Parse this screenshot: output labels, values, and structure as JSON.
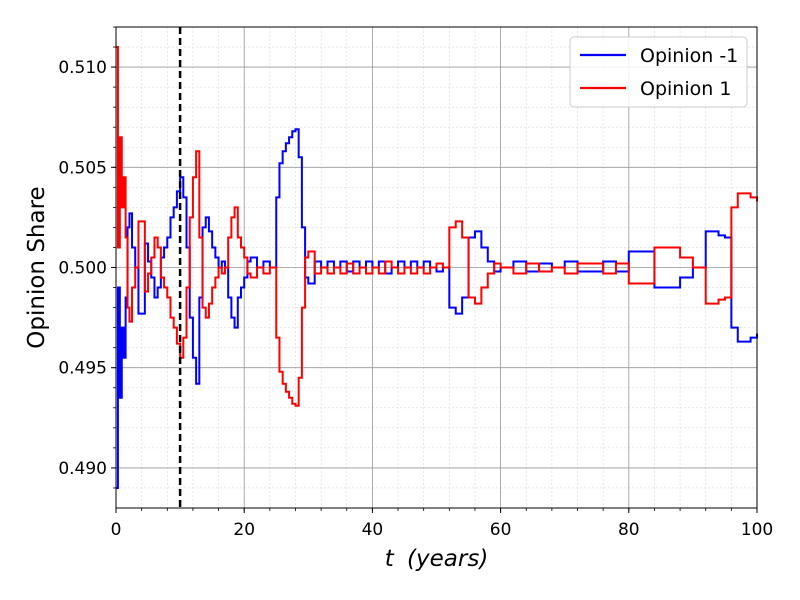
{
  "chart_data": {
    "type": "line",
    "xlabel_var": "t",
    "xlabel_unit": "(years)",
    "ylabel": "Opinion Share",
    "xlim": [
      0,
      100
    ],
    "ylim": [
      0.488,
      0.512
    ],
    "xticks": [
      0,
      20,
      40,
      60,
      80,
      100
    ],
    "yticks": [
      0.49,
      0.495,
      0.5,
      0.505,
      0.51
    ],
    "xtick_labels": [
      "0",
      "20",
      "40",
      "60",
      "80",
      "100"
    ],
    "ytick_labels": [
      "0.490",
      "0.495",
      "0.500",
      "0.505",
      "0.510"
    ],
    "grid": true,
    "minor_grid": true,
    "legend_position": "top-right",
    "vline": {
      "x": 10,
      "style": "dashed",
      "color": "#000000"
    },
    "series": [
      {
        "name": "Opinion -1",
        "color": "#0000ff",
        "x": [
          0.0,
          0.3,
          0.6,
          0.9,
          1.2,
          1.5,
          1.8,
          2.1,
          2.5,
          3.0,
          3.5,
          4.0,
          4.5,
          5.0,
          5.5,
          6.0,
          6.5,
          7.0,
          7.5,
          8.0,
          8.5,
          9.0,
          9.5,
          10.0,
          10.5,
          11.0,
          11.5,
          12.0,
          12.5,
          13.0,
          13.5,
          14.0,
          14.5,
          15.0,
          15.5,
          16.0,
          16.5,
          17.0,
          17.5,
          18.0,
          18.5,
          19.0,
          19.5,
          20.0,
          20.5,
          21.0,
          22.0,
          23.0,
          24.0,
          25.0,
          25.5,
          26.0,
          26.5,
          27.0,
          27.5,
          28.0,
          28.5,
          29.0,
          29.5,
          30.0,
          31.0,
          32.0,
          33.0,
          34.0,
          35.0,
          36.0,
          37.0,
          38.0,
          39.0,
          40.0,
          41.0,
          42.0,
          43.0,
          44.0,
          45.0,
          46.0,
          47.0,
          48.0,
          49.0,
          50.0,
          51.0,
          52.0,
          53.0,
          54.0,
          55.0,
          56.0,
          57.0,
          58.0,
          59.0,
          60.0,
          62.0,
          64.0,
          66.0,
          68.0,
          70.0,
          72.0,
          74.0,
          76.0,
          78.0,
          80.0,
          82.0,
          84.0,
          86.0,
          88.0,
          90.0,
          92.0,
          94.0,
          95.0,
          96.0,
          97.0,
          98.0,
          99.0,
          100.0
        ],
        "y": [
          0.489,
          0.499,
          0.4935,
          0.497,
          0.4955,
          0.4985,
          0.502,
          0.5027,
          0.501,
          0.5,
          0.4977,
          0.4977,
          0.5012,
          0.5003,
          0.4995,
          0.4985,
          0.499,
          0.5005,
          0.501,
          0.5015,
          0.5025,
          0.503,
          0.5038,
          0.5045,
          0.5035,
          0.501,
          0.4975,
          0.4955,
          0.4942,
          0.4985,
          0.502,
          0.5025,
          0.5018,
          0.501,
          0.5005,
          0.5,
          0.5003,
          0.5,
          0.4985,
          0.4975,
          0.497,
          0.4985,
          0.499,
          0.4995,
          0.5003,
          0.5005,
          0.5,
          0.5003,
          0.5,
          0.5035,
          0.5052,
          0.5058,
          0.5062,
          0.5065,
          0.5068,
          0.5069,
          0.5055,
          0.502,
          0.4995,
          0.4992,
          0.5003,
          0.5,
          0.5003,
          0.5,
          0.5003,
          0.4998,
          0.5003,
          0.5,
          0.5003,
          0.5,
          0.5003,
          0.4997,
          0.5,
          0.5003,
          0.5,
          0.5003,
          0.5,
          0.5003,
          0.5,
          0.4998,
          0.5,
          0.498,
          0.4977,
          0.4985,
          0.5015,
          0.5018,
          0.501,
          0.5003,
          0.4998,
          0.5,
          0.5003,
          0.4998,
          0.5002,
          0.5,
          0.5003,
          0.4998,
          0.4998,
          0.5003,
          0.4998,
          0.5008,
          0.5008,
          0.499,
          0.499,
          0.4995,
          0.5,
          0.5018,
          0.5016,
          0.5015,
          0.497,
          0.4963,
          0.4963,
          0.4965,
          0.4967
        ]
      },
      {
        "name": "Opinion 1",
        "color": "#ff0000",
        "x": [
          0.0,
          0.3,
          0.6,
          0.9,
          1.2,
          1.5,
          1.8,
          2.1,
          2.5,
          3.0,
          3.5,
          4.0,
          4.5,
          5.0,
          5.5,
          6.0,
          6.5,
          7.0,
          7.5,
          8.0,
          8.5,
          9.0,
          9.5,
          10.0,
          10.5,
          11.0,
          11.5,
          12.0,
          12.5,
          13.0,
          13.5,
          14.0,
          14.5,
          15.0,
          15.5,
          16.0,
          16.5,
          17.0,
          17.5,
          18.0,
          18.5,
          19.0,
          19.5,
          20.0,
          20.5,
          21.0,
          22.0,
          23.0,
          24.0,
          25.0,
          25.5,
          26.0,
          26.5,
          27.0,
          27.5,
          28.0,
          28.5,
          29.0,
          29.5,
          30.0,
          31.0,
          32.0,
          33.0,
          34.0,
          35.0,
          36.0,
          37.0,
          38.0,
          39.0,
          40.0,
          41.0,
          42.0,
          43.0,
          44.0,
          45.0,
          46.0,
          47.0,
          48.0,
          49.0,
          50.0,
          51.0,
          52.0,
          53.0,
          54.0,
          55.0,
          56.0,
          57.0,
          58.0,
          59.0,
          60.0,
          62.0,
          64.0,
          66.0,
          68.0,
          70.0,
          72.0,
          74.0,
          76.0,
          78.0,
          80.0,
          82.0,
          84.0,
          86.0,
          88.0,
          90.0,
          92.0,
          94.0,
          95.0,
          96.0,
          97.0,
          98.0,
          99.0,
          100.0
        ],
        "y": [
          0.511,
          0.501,
          0.5065,
          0.503,
          0.5045,
          0.5015,
          0.498,
          0.4973,
          0.499,
          0.5,
          0.5023,
          0.5023,
          0.4988,
          0.4997,
          0.5005,
          0.5015,
          0.501,
          0.4995,
          0.499,
          0.4985,
          0.4975,
          0.497,
          0.4962,
          0.4955,
          0.4965,
          0.499,
          0.5025,
          0.5045,
          0.5058,
          0.5015,
          0.498,
          0.4975,
          0.4982,
          0.499,
          0.4995,
          0.5,
          0.4997,
          0.5,
          0.5015,
          0.5025,
          0.503,
          0.5015,
          0.501,
          0.5005,
          0.4997,
          0.4995,
          0.5,
          0.4997,
          0.5,
          0.4965,
          0.4948,
          0.4942,
          0.4938,
          0.4935,
          0.4932,
          0.4931,
          0.4945,
          0.498,
          0.5005,
          0.5008,
          0.4997,
          0.5,
          0.4997,
          0.5,
          0.4997,
          0.5002,
          0.4997,
          0.5,
          0.4997,
          0.5,
          0.4997,
          0.5003,
          0.5,
          0.4997,
          0.5,
          0.4997,
          0.5,
          0.4997,
          0.5,
          0.5002,
          0.5,
          0.502,
          0.5023,
          0.5015,
          0.4985,
          0.4982,
          0.499,
          0.4997,
          0.5002,
          0.5,
          0.4997,
          0.5002,
          0.4998,
          0.5,
          0.4997,
          0.5002,
          0.5002,
          0.4997,
          0.5002,
          0.4992,
          0.4992,
          0.501,
          0.501,
          0.5005,
          0.5,
          0.4982,
          0.4984,
          0.4985,
          0.503,
          0.5037,
          0.5037,
          0.5035,
          0.5033
        ]
      }
    ]
  }
}
